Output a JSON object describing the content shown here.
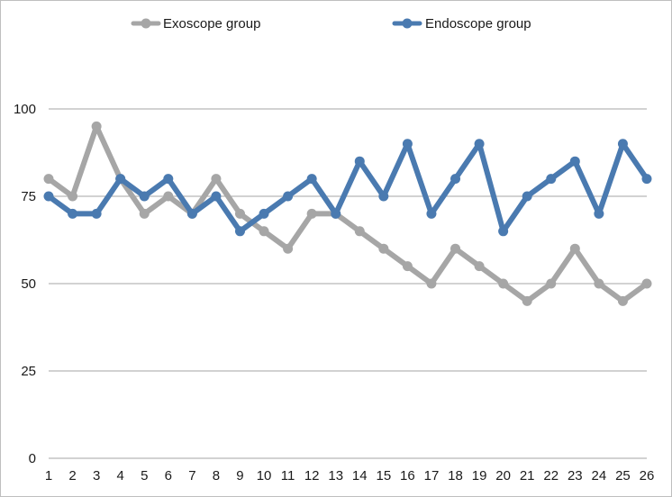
{
  "chart_data": {
    "type": "line",
    "title": "",
    "xlabel": "",
    "ylabel": "",
    "x": [
      1,
      2,
      3,
      4,
      5,
      6,
      7,
      8,
      9,
      10,
      11,
      12,
      13,
      14,
      15,
      16,
      17,
      18,
      19,
      20,
      21,
      22,
      23,
      24,
      25,
      26
    ],
    "x_tick_labels": [
      "1",
      "2",
      "3",
      "4",
      "5",
      "6",
      "7",
      "8",
      "9",
      "10",
      "11",
      "12",
      "13",
      "14",
      "15",
      "16",
      "17",
      "18",
      "19",
      "20",
      "21",
      "22",
      "23",
      "24",
      "25",
      "26"
    ],
    "ylim": [
      0,
      100
    ],
    "y_ticks": [
      0,
      25,
      50,
      75,
      100
    ],
    "y_tick_labels": [
      "0",
      "25",
      "50",
      "75",
      "100"
    ],
    "grid": "horizontal",
    "legend_position": "top",
    "series": [
      {
        "name": "Exoscope group",
        "color": "#a6a6a6",
        "values": [
          80,
          75,
          95,
          80,
          70,
          75,
          70,
          80,
          70,
          65,
          60,
          70,
          70,
          65,
          60,
          55,
          50,
          60,
          55,
          50,
          45,
          50,
          60,
          50,
          45,
          50
        ]
      },
      {
        "name": "Endoscope group",
        "color": "#4a7ab0",
        "values": [
          75,
          70,
          70,
          80,
          75,
          80,
          70,
          75,
          65,
          70,
          75,
          80,
          70,
          85,
          75,
          90,
          70,
          80,
          90,
          65,
          75,
          80,
          85,
          70,
          90,
          80
        ]
      }
    ]
  }
}
